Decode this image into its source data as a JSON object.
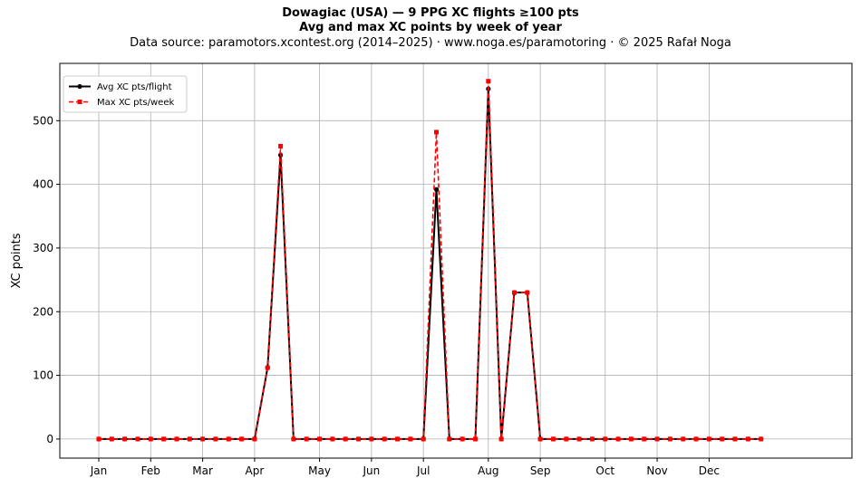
{
  "chart_data": {
    "type": "line",
    "title": "Dowagiac (USA)  —  9 PPG XC flights ≥100 pts",
    "title2": "Avg and max XC points by week of year",
    "subtitle": "Data source: paramotors.xcontest.org (2014–2025)  ·  www.noga.es/paramotoring  ·  © 2025 Rafał Noga",
    "xlabel": "",
    "ylabel": "XC points",
    "x_unit": "week",
    "xlim": [
      -2,
      59
    ],
    "ylim": [
      -30,
      590
    ],
    "grid": true,
    "legend_position": "upper-left",
    "month_ticks": [
      {
        "label": "Jan",
        "week": 1
      },
      {
        "label": "Feb",
        "week": 5
      },
      {
        "label": "Mar",
        "week": 9
      },
      {
        "label": "Apr",
        "week": 13
      },
      {
        "label": "May",
        "week": 18
      },
      {
        "label": "Jun",
        "week": 22
      },
      {
        "label": "Jul",
        "week": 26
      },
      {
        "label": "Aug",
        "week": 31
      },
      {
        "label": "Sep",
        "week": 35
      },
      {
        "label": "Oct",
        "week": 40
      },
      {
        "label": "Nov",
        "week": 44
      },
      {
        "label": "Dec",
        "week": 48
      }
    ],
    "y_ticks": [
      0,
      100,
      200,
      300,
      400,
      500
    ],
    "x": [
      1,
      2,
      3,
      4,
      5,
      6,
      7,
      8,
      9,
      10,
      11,
      12,
      13,
      14,
      15,
      16,
      17,
      18,
      19,
      20,
      21,
      22,
      23,
      24,
      25,
      26,
      27,
      28,
      29,
      30,
      31,
      32,
      33,
      34,
      35,
      36,
      37,
      38,
      39,
      40,
      41,
      42,
      43,
      44,
      45,
      46,
      47,
      48,
      49,
      50,
      51,
      52
    ],
    "series": [
      {
        "name": "Avg XC pts/flight",
        "color": "#000000",
        "style": "solid",
        "marker": "circle",
        "values": [
          0,
          0,
          0,
          0,
          0,
          0,
          0,
          0,
          0,
          0,
          0,
          0,
          0,
          112,
          446,
          0,
          0,
          0,
          0,
          0,
          0,
          0,
          0,
          0,
          0,
          0,
          392,
          0,
          0,
          0,
          550,
          0,
          230,
          230,
          0,
          0,
          0,
          0,
          0,
          0,
          0,
          0,
          0,
          0,
          0,
          0,
          0,
          0,
          0,
          0,
          0,
          0
        ]
      },
      {
        "name": "Max XC pts/week",
        "color": "#ff0000",
        "style": "dashed",
        "marker": "square",
        "values": [
          0,
          0,
          0,
          0,
          0,
          0,
          0,
          0,
          0,
          0,
          0,
          0,
          0,
          112,
          460,
          0,
          0,
          0,
          0,
          0,
          0,
          0,
          0,
          0,
          0,
          0,
          482,
          0,
          0,
          0,
          562,
          0,
          230,
          230,
          0,
          0,
          0,
          0,
          0,
          0,
          0,
          0,
          0,
          0,
          0,
          0,
          0,
          0,
          0,
          0,
          0,
          0
        ]
      }
    ]
  }
}
